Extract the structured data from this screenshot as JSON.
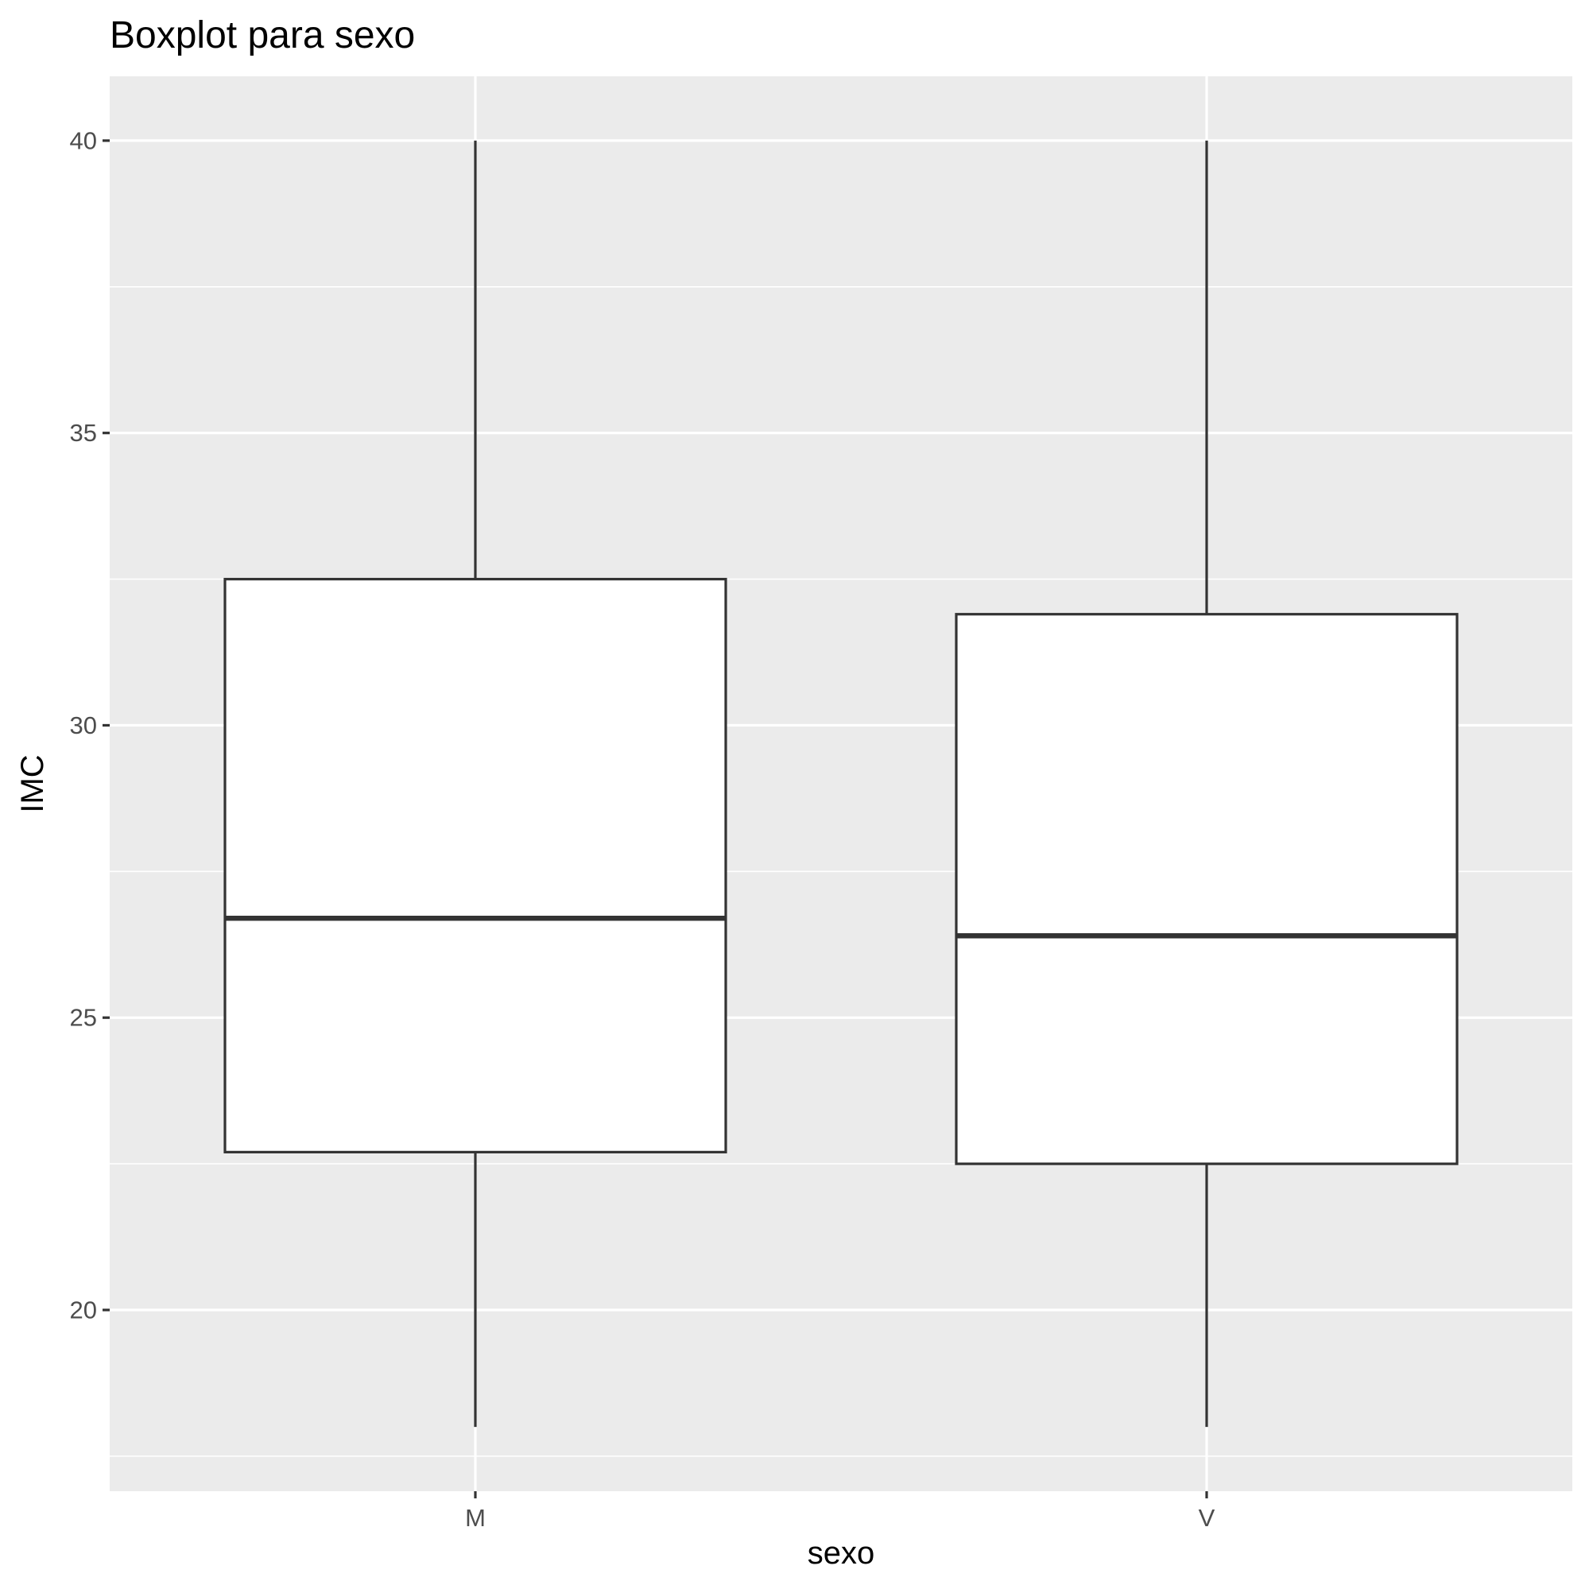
{
  "chart_data": {
    "type": "boxplot",
    "title": "Boxplot para sexo",
    "xlabel": "sexo",
    "ylabel": "IMC",
    "categories": [
      "M",
      "V"
    ],
    "boxes": [
      {
        "category": "M",
        "whisker_low": 18.0,
        "q1": 22.7,
        "median": 26.7,
        "q3": 32.5,
        "whisker_high": 40.0
      },
      {
        "category": "V",
        "whisker_low": 18.0,
        "q1": 22.5,
        "median": 26.4,
        "q3": 31.9,
        "whisker_high": 40.0
      }
    ],
    "y_ticks": [
      20,
      25,
      30,
      35,
      40
    ],
    "ylim": [
      16.9,
      41.1
    ],
    "grid": true,
    "colors": {
      "panel_background": "#ebebeb",
      "grid_line": "#ffffff",
      "box_fill": "#ffffff",
      "box_stroke": "#333333",
      "tick_mark": "#333333"
    }
  }
}
